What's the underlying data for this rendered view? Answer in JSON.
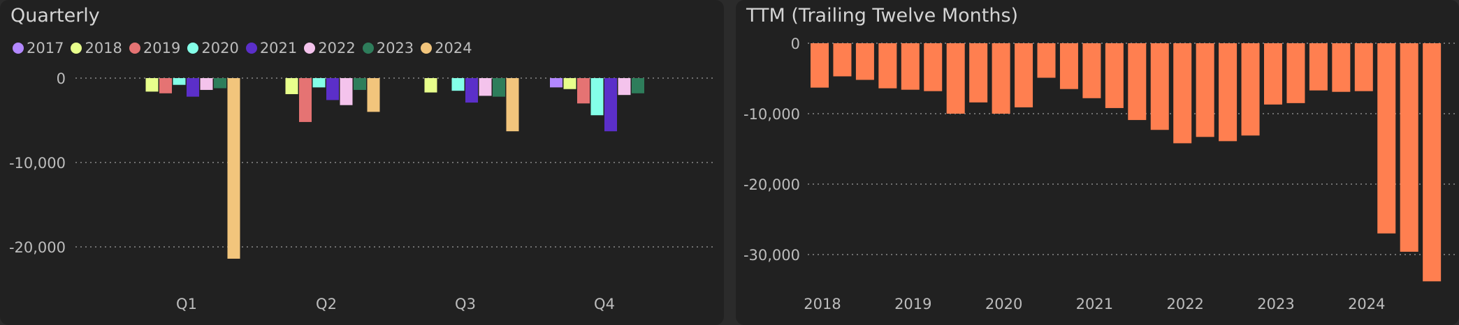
{
  "colors": {
    "background": "#212121",
    "text": "#bdbdbd",
    "title": "#d4d4d4",
    "grid": "#8a8a8a",
    "ttm_bar": "#ff7f50"
  },
  "chart_data": [
    {
      "type": "bar",
      "title": "Quarterly",
      "categories": [
        "Q1",
        "Q2",
        "Q3",
        "Q4"
      ],
      "ylim": [
        -21500,
        300
      ],
      "yticks": [
        0,
        -10000,
        -20000
      ],
      "ytick_labels": [
        "0",
        "-10,000",
        "-20,000"
      ],
      "grid": true,
      "legend_position": "top-left",
      "series": [
        {
          "name": "2017",
          "color": "#b388ff",
          "values": [
            0,
            0,
            0,
            -1100
          ]
        },
        {
          "name": "2018",
          "color": "#e8ff8c",
          "values": [
            -1600,
            -1900,
            -1700,
            -1300
          ]
        },
        {
          "name": "2019",
          "color": "#e57373",
          "values": [
            -1800,
            -5200,
            0,
            -3000
          ]
        },
        {
          "name": "2020",
          "color": "#84ffe8",
          "values": [
            -800,
            -1100,
            -1500,
            -4400
          ]
        },
        {
          "name": "2021",
          "color": "#5b2fc9",
          "values": [
            -2200,
            -2600,
            -2900,
            -6300
          ]
        },
        {
          "name": "2022",
          "color": "#f4c3ec",
          "values": [
            -1400,
            -3200,
            -2100,
            -2000
          ]
        },
        {
          "name": "2023",
          "color": "#2e7d5b",
          "values": [
            -1200,
            -1400,
            -2200,
            -1800
          ]
        },
        {
          "name": "2024",
          "color": "#f2c57c",
          "values": [
            -21400,
            -4000,
            -6300,
            0
          ]
        }
      ]
    },
    {
      "type": "bar",
      "title": "TTM (Trailing Twelve Months)",
      "ylim": [
        -34500,
        0
      ],
      "yticks": [
        0,
        -10000,
        -20000,
        -30000
      ],
      "ytick_labels": [
        "0",
        "-10,000",
        "-20,000",
        "-30,000"
      ],
      "xtick_labels": [
        "2018",
        "2019",
        "2020",
        "2021",
        "2022",
        "2023",
        "2024"
      ],
      "grid": true,
      "series": [
        {
          "color": "#ff7f50",
          "values": [
            -6300,
            -4700,
            -5200,
            -6400,
            -6600,
            -6800,
            -10000,
            -8400,
            -10000,
            -9100,
            -4900,
            -6500,
            -7800,
            -9200,
            -10900,
            -12300,
            -14200,
            -13300,
            -13900,
            -13100,
            -8700,
            -8500,
            -6700,
            -6900,
            -6800,
            -27000,
            -29600,
            -33800
          ]
        }
      ]
    }
  ]
}
